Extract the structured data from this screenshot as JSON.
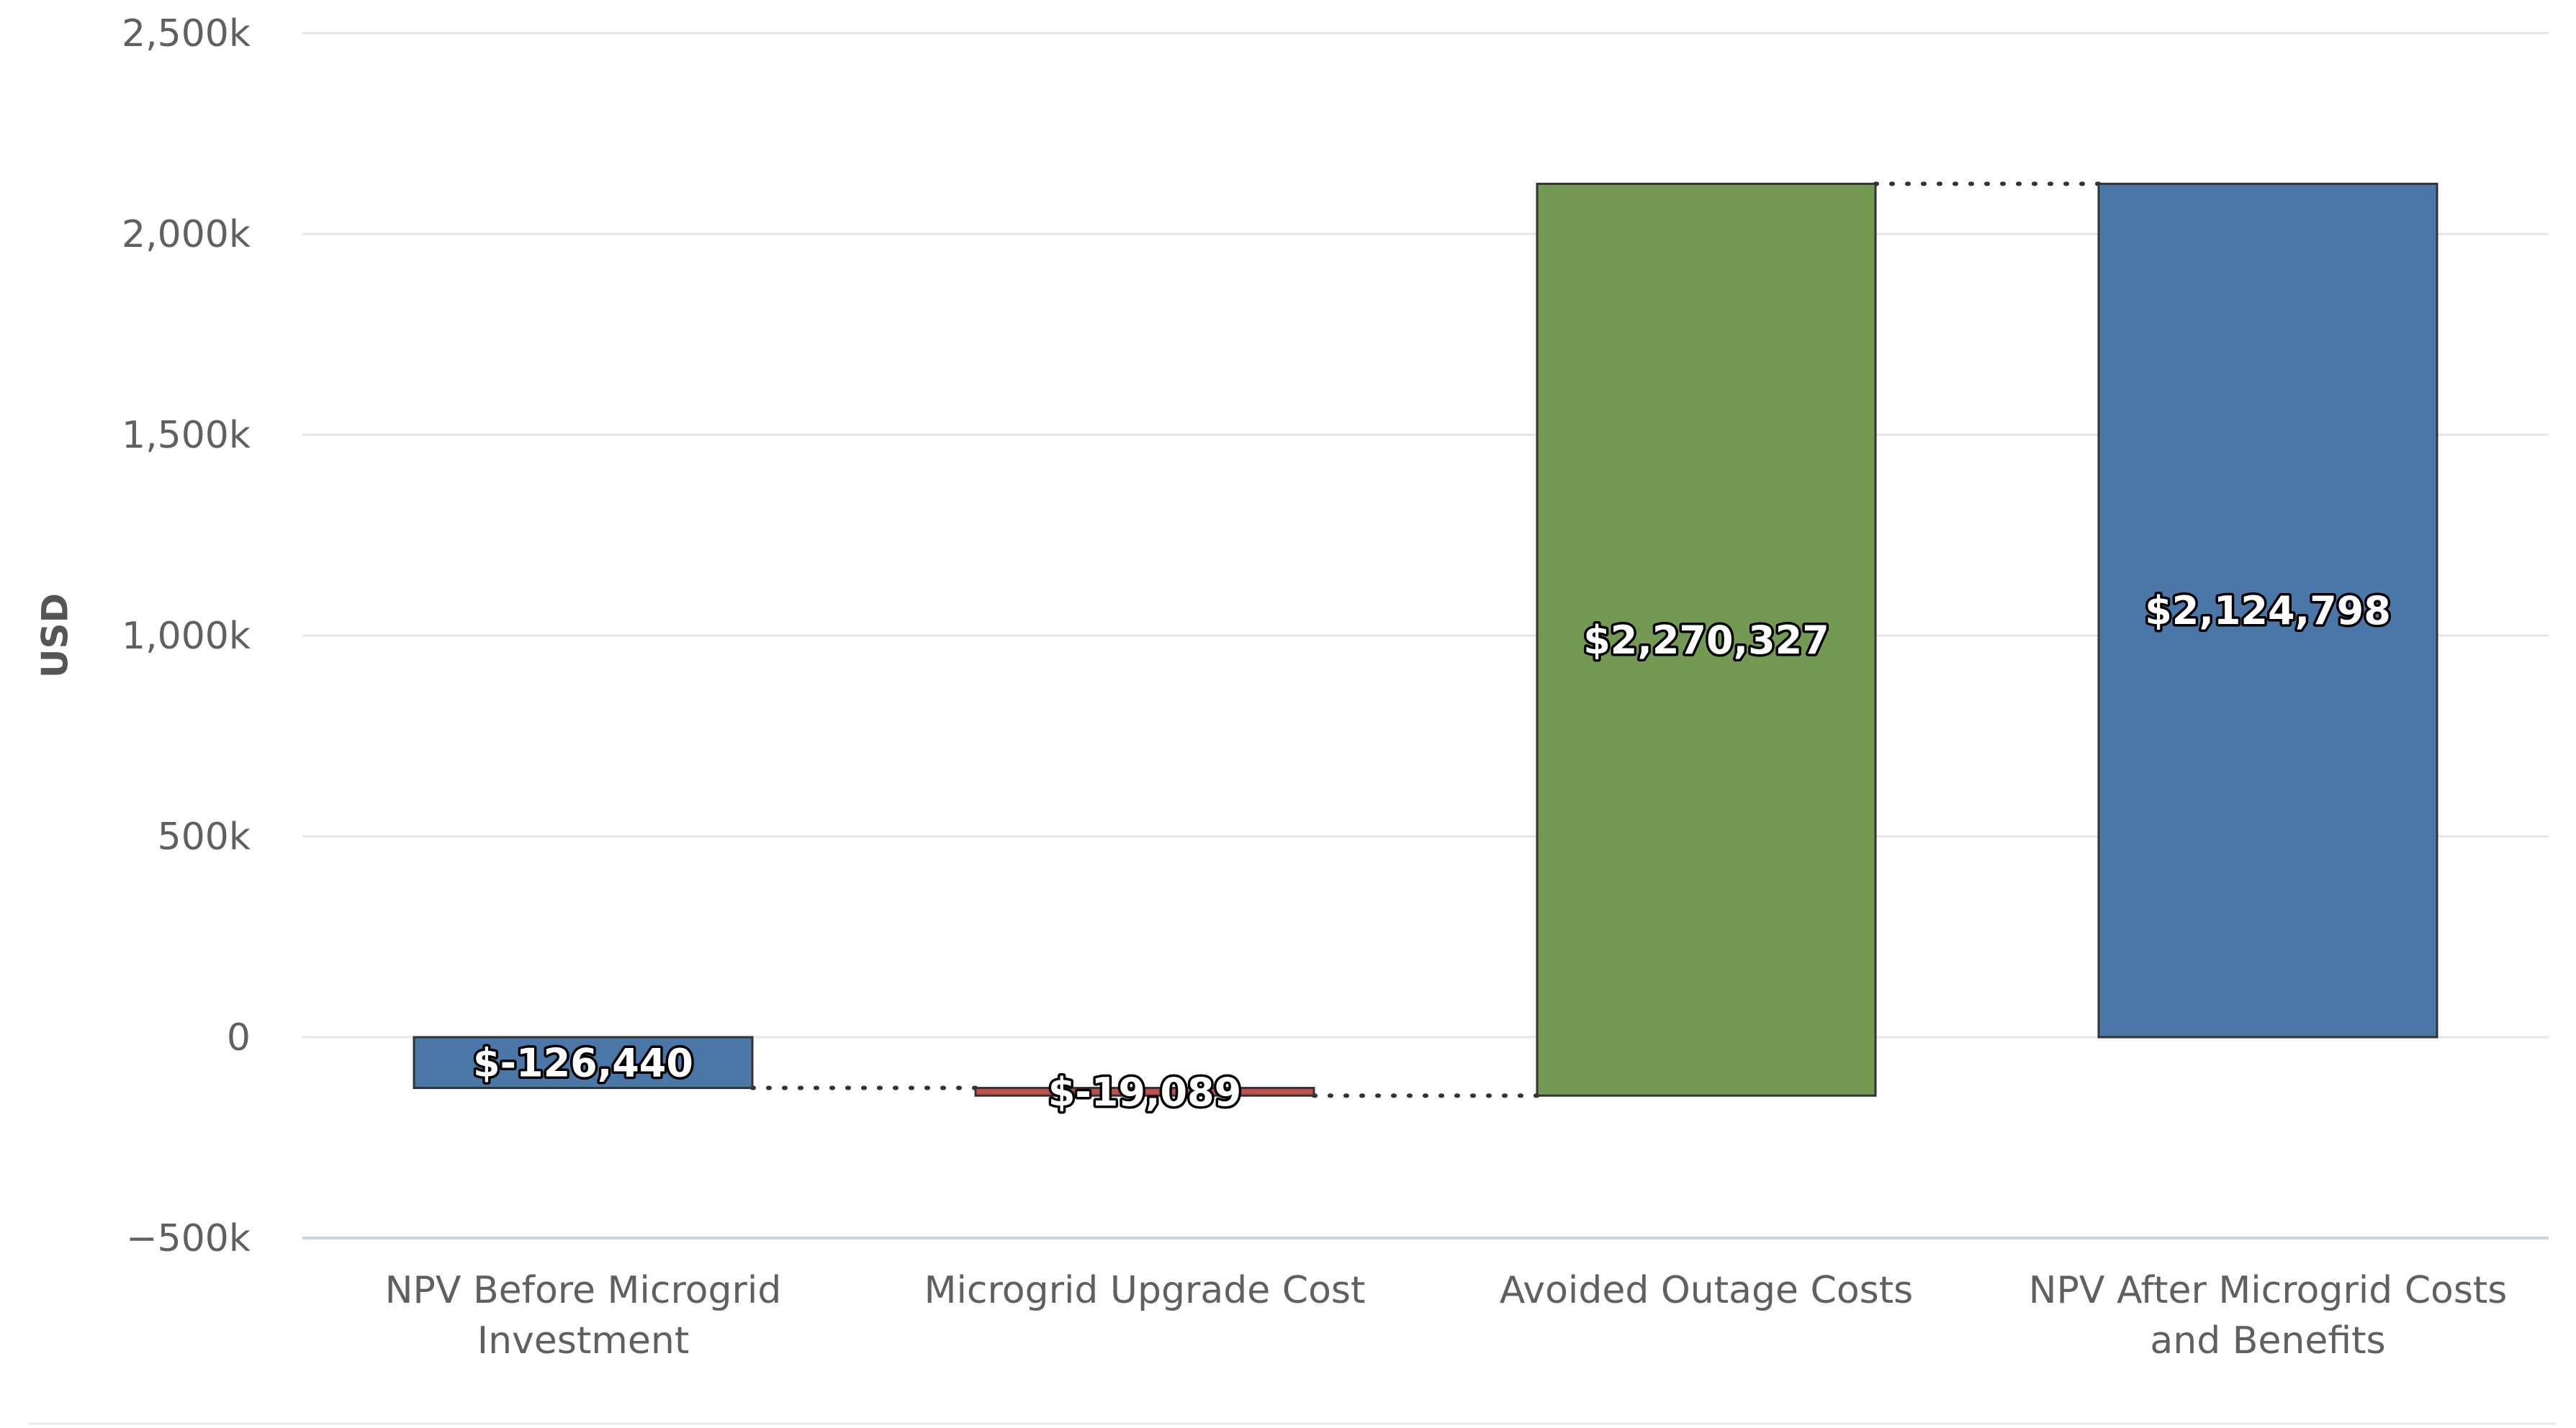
{
  "chart_data": {
    "type": "waterfall",
    "categories": [
      "NPV Before Microgrid Investment",
      "Microgrid Upgrade Cost",
      "Avoided Outage Costs",
      "NPV After Microgrid Costs and Benefits"
    ],
    "category_lines": [
      [
        "NPV Before Microgrid",
        "Investment"
      ],
      [
        "Microgrid Upgrade Cost"
      ],
      [
        "Avoided Outage Costs"
      ],
      [
        "NPV After Microgrid Costs",
        "and Benefits"
      ]
    ],
    "values": [
      -126440,
      -19089,
      2270327,
      2124798
    ],
    "is_total": [
      false,
      false,
      false,
      true
    ],
    "data_labels": [
      "$-126,440",
      "$-19,089",
      "$2,270,327",
      "$2,124,798"
    ],
    "colors": [
      "#4a77a8",
      "#c0504d",
      "#739953",
      "#4a77a8"
    ],
    "ylabel": "USD",
    "ylim": [
      -500000,
      2500000
    ],
    "yticks": [
      -500000,
      0,
      500000,
      1000000,
      1500000,
      2000000,
      2500000
    ],
    "ytick_labels": [
      "−500k",
      "0",
      "500k",
      "1,000k",
      "1,500k",
      "2,000k",
      "2,500k"
    ],
    "grid": true,
    "connector_style": "dotted"
  }
}
